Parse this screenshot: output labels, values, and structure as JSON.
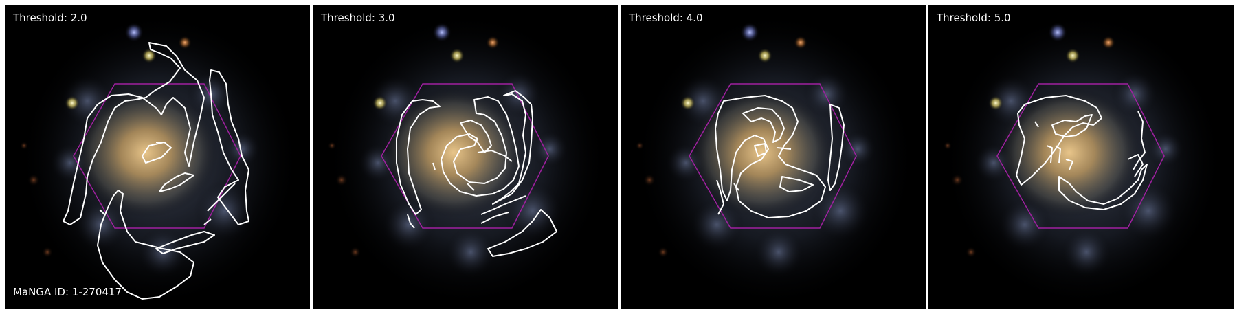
{
  "panels": [
    {
      "threshold_label": "Threshold: 2.0"
    },
    {
      "threshold_label": "Threshold: 3.0"
    },
    {
      "threshold_label": "Threshold: 4.0"
    },
    {
      "threshold_label": "Threshold: 5.0"
    }
  ],
  "galaxy_id_label": "MaNGA ID: 1-270417",
  "colors": {
    "background": "#000000",
    "contour": "#ffffff",
    "hexagon": "#a020a0",
    "galaxy_core": "#c8a66a",
    "arm_glow": "#5a6b8a"
  }
}
